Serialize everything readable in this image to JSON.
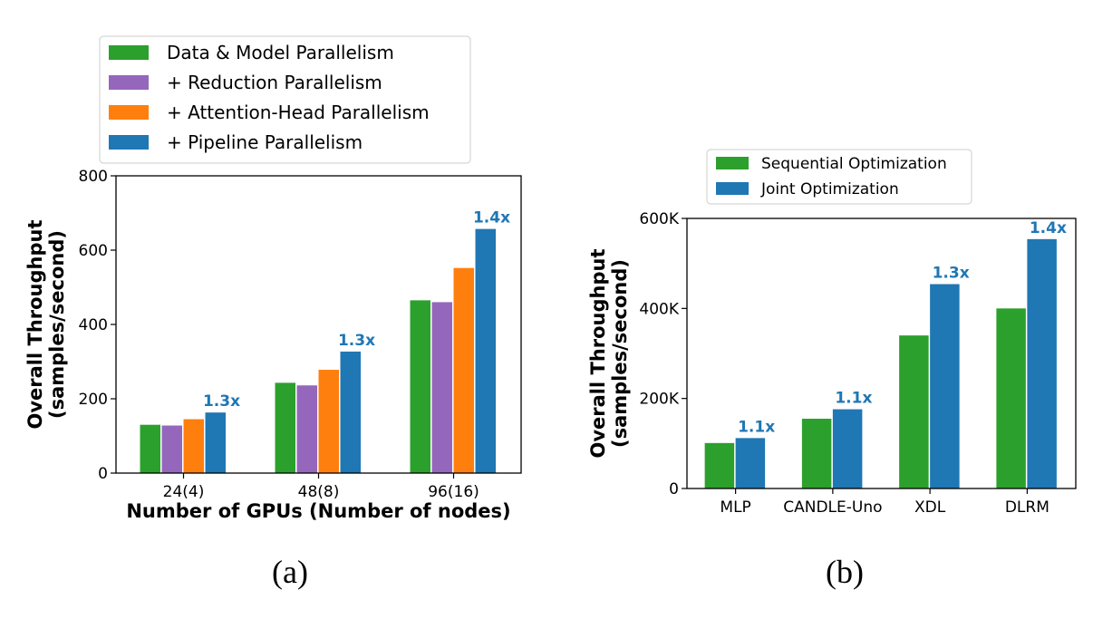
{
  "chart_data": [
    {
      "type": "bar",
      "caption": "(a)",
      "xlabel": "Number of GPUs (Number of nodes)",
      "ylabel": "Overall Throughput\n(samples/second)",
      "ylim": [
        0,
        800
      ],
      "yticks": [
        "0",
        "200",
        "400",
        "600",
        "800"
      ],
      "categories": [
        "24(4)",
        "48(8)",
        "96(16)"
      ],
      "legend_position": "top-left, above plot",
      "series": [
        {
          "name": "Data & Model Parallelism",
          "color": "#2ca02c",
          "values": [
            130,
            243,
            465
          ]
        },
        {
          "name": "+ Reduction Parallelism",
          "color": "#9467bd",
          "values": [
            128,
            236,
            460
          ]
        },
        {
          "name": "+ Attention-Head Parallelism",
          "color": "#ff7f0e",
          "values": [
            145,
            278,
            552
          ]
        },
        {
          "name": "+ Pipeline Parallelism",
          "color": "#1f77b4",
          "values": [
            163,
            327,
            657
          ]
        }
      ],
      "annotations": [
        "1.3x",
        "1.3x",
        "1.4x"
      ],
      "annotation_color": "#1f77b4"
    },
    {
      "type": "bar",
      "caption": "(b)",
      "xlabel": "",
      "ylabel": "Overall Throughput\n(samples/second)",
      "ylim": [
        0,
        600000
      ],
      "yticks": [
        "0",
        "200K",
        "400K",
        "600K"
      ],
      "categories": [
        "MLP",
        "CANDLE-Uno",
        "XDL",
        "DLRM"
      ],
      "legend_position": "top, above plot",
      "series": [
        {
          "name": "Sequential Optimization",
          "color": "#2ca02c",
          "values": [
            101000,
            155000,
            340000,
            400000
          ]
        },
        {
          "name": "Joint Optimization",
          "color": "#1f77b4",
          "values": [
            112000,
            176000,
            454000,
            554000
          ]
        }
      ],
      "annotations": [
        "1.1x",
        "1.1x",
        "1.3x",
        "1.4x"
      ],
      "annotation_color": "#1f77b4"
    }
  ]
}
